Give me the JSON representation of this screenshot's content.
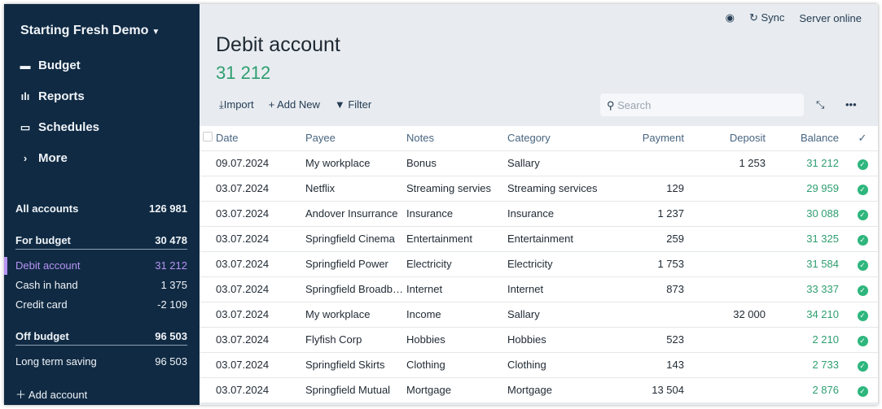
{
  "sidebar": {
    "budget_name": "Starting Fresh Demo",
    "nav": [
      {
        "label": "Budget",
        "icon": "wallet-icon"
      },
      {
        "label": "Reports",
        "icon": "chart-icon"
      },
      {
        "label": "Schedules",
        "icon": "calendar-icon"
      },
      {
        "label": "More",
        "icon": "chevron-right-icon"
      }
    ],
    "all_accounts": {
      "label": "All accounts",
      "value": "126 981"
    },
    "for_budget": {
      "label": "For budget",
      "value": "30 478"
    },
    "budget_accounts": [
      {
        "label": "Debit account",
        "value": "31 212"
      },
      {
        "label": "Cash in hand",
        "value": "1 375"
      },
      {
        "label": "Credit card",
        "value": "-2 109"
      }
    ],
    "off_budget": {
      "label": "Off budget",
      "value": "96 503"
    },
    "off_accounts": [
      {
        "label": "Long term saving",
        "value": "96 503"
      }
    ],
    "add_account": "Add account"
  },
  "topbar": {
    "sync": "Sync",
    "status": "Server online"
  },
  "account": {
    "title": "Debit account",
    "balance": "31 212"
  },
  "toolbar": {
    "import": "Import",
    "add_new": "Add New",
    "filter": "Filter",
    "search_placeholder": "Search"
  },
  "table": {
    "headers": {
      "date": "Date",
      "payee": "Payee",
      "notes": "Notes",
      "category": "Category",
      "payment": "Payment",
      "deposit": "Deposit",
      "balance": "Balance",
      "cleared": "✓"
    },
    "rows": [
      [
        "09.07.2024",
        "My workplace",
        "Bonus",
        "Sallary",
        "",
        "1 253",
        "31 212"
      ],
      [
        "03.07.2024",
        "Netflix",
        "Streaming servies",
        "Streaming services",
        "129",
        "",
        "29 959"
      ],
      [
        "03.07.2024",
        "Andover Insurrance",
        "Insurance",
        "Insurance",
        "1 237",
        "",
        "30 088"
      ],
      [
        "03.07.2024",
        "Springfield Cinema",
        "Entertainment",
        "Entertainment",
        "259",
        "",
        "31 325"
      ],
      [
        "03.07.2024",
        "Springfield Power",
        "Electricity",
        "Electricity",
        "1 753",
        "",
        "31 584"
      ],
      [
        "03.07.2024",
        "Springfield Broadband",
        "Internet",
        "Internet",
        "873",
        "",
        "33 337"
      ],
      [
        "03.07.2024",
        "My workplace",
        "Income",
        "Sallary",
        "",
        "32 000",
        "34 210"
      ],
      [
        "03.07.2024",
        "Flyfish Corp",
        "Hobbies",
        "Hobbies",
        "523",
        "",
        "2 210"
      ],
      [
        "03.07.2024",
        "Springfield Skirts",
        "Clothing",
        "Clothing",
        "143",
        "",
        "2 733"
      ],
      [
        "03.07.2024",
        "Springfield Mutual",
        "Mortgage",
        "Mortgage",
        "13 504",
        "",
        "2 876"
      ]
    ]
  },
  "colors": {
    "sidebar": "#102a43",
    "accent": "#b794f4",
    "positive": "#2e9e6f"
  }
}
